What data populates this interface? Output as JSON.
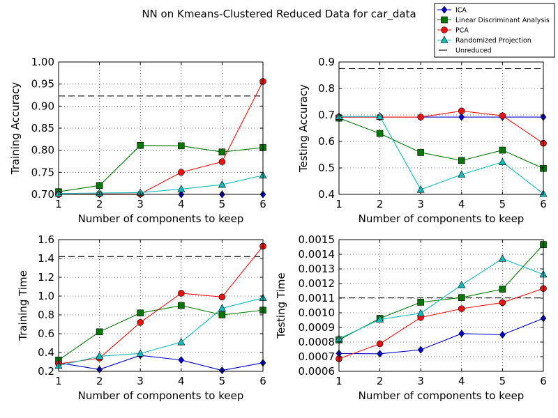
{
  "title": "NN on Kmeans-Clustered Reduced Data for car_data",
  "legend": {
    "placement": "top-right",
    "entries": [
      {
        "label": "ICA",
        "color": "#0000cc",
        "marker": "diamond"
      },
      {
        "label": "Linear Discriminant Analysis",
        "color": "#007700",
        "marker": "square"
      },
      {
        "label": "PCA",
        "color": "#ee1111",
        "marker": "circle"
      },
      {
        "label": "Randomized Projection",
        "color": "#11bbbb",
        "marker": "triangle"
      },
      {
        "label": "Unreduced",
        "color": "#000000",
        "marker": "dash"
      }
    ]
  },
  "chart_data": [
    {
      "type": "line",
      "xlabel": "Number of components to keep",
      "ylabel": "Training Accuracy",
      "x": [
        1,
        2,
        3,
        4,
        5,
        6
      ],
      "xlim": [
        1,
        6
      ],
      "ylim": [
        0.7,
        1.0
      ],
      "xticks": [
        "1",
        "2",
        "3",
        "4",
        "5",
        "6"
      ],
      "yticks": [
        {
          "v": 0.7,
          "t": "0.70"
        },
        {
          "v": 0.75,
          "t": "0.75"
        },
        {
          "v": 0.8,
          "t": "0.80"
        },
        {
          "v": 0.85,
          "t": "0.85"
        },
        {
          "v": 0.9,
          "t": "0.90"
        },
        {
          "v": 0.95,
          "t": "0.95"
        },
        {
          "v": 1.0,
          "t": "1.00"
        }
      ],
      "grid": true,
      "series": [
        {
          "name": "ICA",
          "values": [
            0.7,
            0.7,
            0.7,
            0.7,
            0.7,
            0.7
          ]
        },
        {
          "name": "Linear Discriminant Analysis",
          "values": [
            0.706,
            0.72,
            0.811,
            0.81,
            0.796,
            0.806
          ]
        },
        {
          "name": "PCA",
          "values": [
            0.7,
            0.701,
            0.701,
            0.75,
            0.774,
            0.956
          ]
        },
        {
          "name": "Randomized Projection",
          "values": [
            0.702,
            0.703,
            0.704,
            0.712,
            0.722,
            0.743
          ]
        }
      ],
      "reference": {
        "name": "Unreduced",
        "value": 0.923
      }
    },
    {
      "type": "line",
      "xlabel": "Number of components to keep",
      "ylabel": "Testing Accuracy",
      "x": [
        1,
        2,
        3,
        4,
        5,
        6
      ],
      "xlim": [
        1,
        6
      ],
      "ylim": [
        0.4,
        0.9
      ],
      "xticks": [
        "1",
        "2",
        "3",
        "4",
        "5",
        "6"
      ],
      "yticks": [
        {
          "v": 0.4,
          "t": "0.4"
        },
        {
          "v": 0.5,
          "t": "0.5"
        },
        {
          "v": 0.6,
          "t": "0.6"
        },
        {
          "v": 0.7,
          "t": "0.7"
        },
        {
          "v": 0.8,
          "t": "0.8"
        },
        {
          "v": 0.9,
          "t": "0.9"
        }
      ],
      "grid": true,
      "series": [
        {
          "name": "ICA",
          "values": [
            0.692,
            0.692,
            0.692,
            0.692,
            0.692,
            0.692
          ]
        },
        {
          "name": "Linear Discriminant Analysis",
          "values": [
            0.688,
            0.63,
            0.558,
            0.528,
            0.567,
            0.498
          ]
        },
        {
          "name": "PCA",
          "values": [
            0.692,
            0.692,
            0.692,
            0.715,
            0.697,
            0.593
          ]
        },
        {
          "name": "Randomized Projection",
          "values": [
            0.694,
            0.694,
            0.418,
            0.475,
            0.522,
            0.402
          ]
        }
      ],
      "reference": {
        "name": "Unreduced",
        "value": 0.875
      }
    },
    {
      "type": "line",
      "xlabel": "Number of components to keep",
      "ylabel": "Training Time",
      "x": [
        1,
        2,
        3,
        4,
        5,
        6
      ],
      "xlim": [
        1,
        6
      ],
      "ylim": [
        0.2,
        1.6
      ],
      "xticks": [
        "1",
        "2",
        "3",
        "4",
        "5",
        "6"
      ],
      "yticks": [
        {
          "v": 0.2,
          "t": "0.2"
        },
        {
          "v": 0.4,
          "t": "0.4"
        },
        {
          "v": 0.6,
          "t": "0.6"
        },
        {
          "v": 0.8,
          "t": "0.8"
        },
        {
          "v": 1.0,
          "t": "1.0"
        },
        {
          "v": 1.2,
          "t": "1.2"
        },
        {
          "v": 1.4,
          "t": "1.4"
        },
        {
          "v": 1.6,
          "t": "1.6"
        }
      ],
      "grid": true,
      "series": [
        {
          "name": "ICA",
          "values": [
            0.29,
            0.22,
            0.37,
            0.32,
            0.21,
            0.29
          ]
        },
        {
          "name": "Linear Discriminant Analysis",
          "values": [
            0.32,
            0.62,
            0.82,
            0.9,
            0.8,
            0.85
          ]
        },
        {
          "name": "PCA",
          "values": [
            0.28,
            0.34,
            0.72,
            1.03,
            0.99,
            1.53
          ]
        },
        {
          "name": "Randomized Projection",
          "values": [
            0.26,
            0.36,
            0.39,
            0.51,
            0.87,
            0.98
          ]
        }
      ],
      "reference": {
        "name": "Unreduced",
        "value": 1.42
      }
    },
    {
      "type": "line",
      "xlabel": "Number of components to keep",
      "ylabel": "Testing Time",
      "x": [
        1,
        2,
        3,
        4,
        5,
        6
      ],
      "xlim": [
        1,
        6
      ],
      "ylim": [
        0.0006,
        0.0015
      ],
      "xticks": [
        "1",
        "2",
        "3",
        "4",
        "5",
        "6"
      ],
      "yticks": [
        {
          "v": 0.0006,
          "t": "0.0006"
        },
        {
          "v": 0.0007,
          "t": "0.0007"
        },
        {
          "v": 0.0008,
          "t": "0.0008"
        },
        {
          "v": 0.0009,
          "t": "0.0009"
        },
        {
          "v": 0.001,
          "t": "0.0010"
        },
        {
          "v": 0.0011,
          "t": "0.0011"
        },
        {
          "v": 0.0012,
          "t": "0.0012"
        },
        {
          "v": 0.0013,
          "t": "0.0013"
        },
        {
          "v": 0.0014,
          "t": "0.0014"
        },
        {
          "v": 0.0015,
          "t": "0.0015"
        }
      ],
      "grid": true,
      "series": [
        {
          "name": "ICA",
          "values": [
            0.000722,
            0.00072,
            0.000747,
            0.000858,
            0.00085,
            0.000962
          ]
        },
        {
          "name": "Linear Discriminant Analysis",
          "values": [
            0.000815,
            0.000962,
            0.001072,
            0.001104,
            0.001162,
            0.001466
          ]
        },
        {
          "name": "PCA",
          "values": [
            0.000686,
            0.000788,
            0.000968,
            0.001028,
            0.00107,
            0.001166
          ]
        },
        {
          "name": "Randomized Projection",
          "values": [
            0.000822,
            0.000955,
            0.000997,
            0.00119,
            0.00137,
            0.001262
          ]
        }
      ],
      "reference": {
        "name": "Unreduced",
        "value": 0.001102
      }
    }
  ]
}
